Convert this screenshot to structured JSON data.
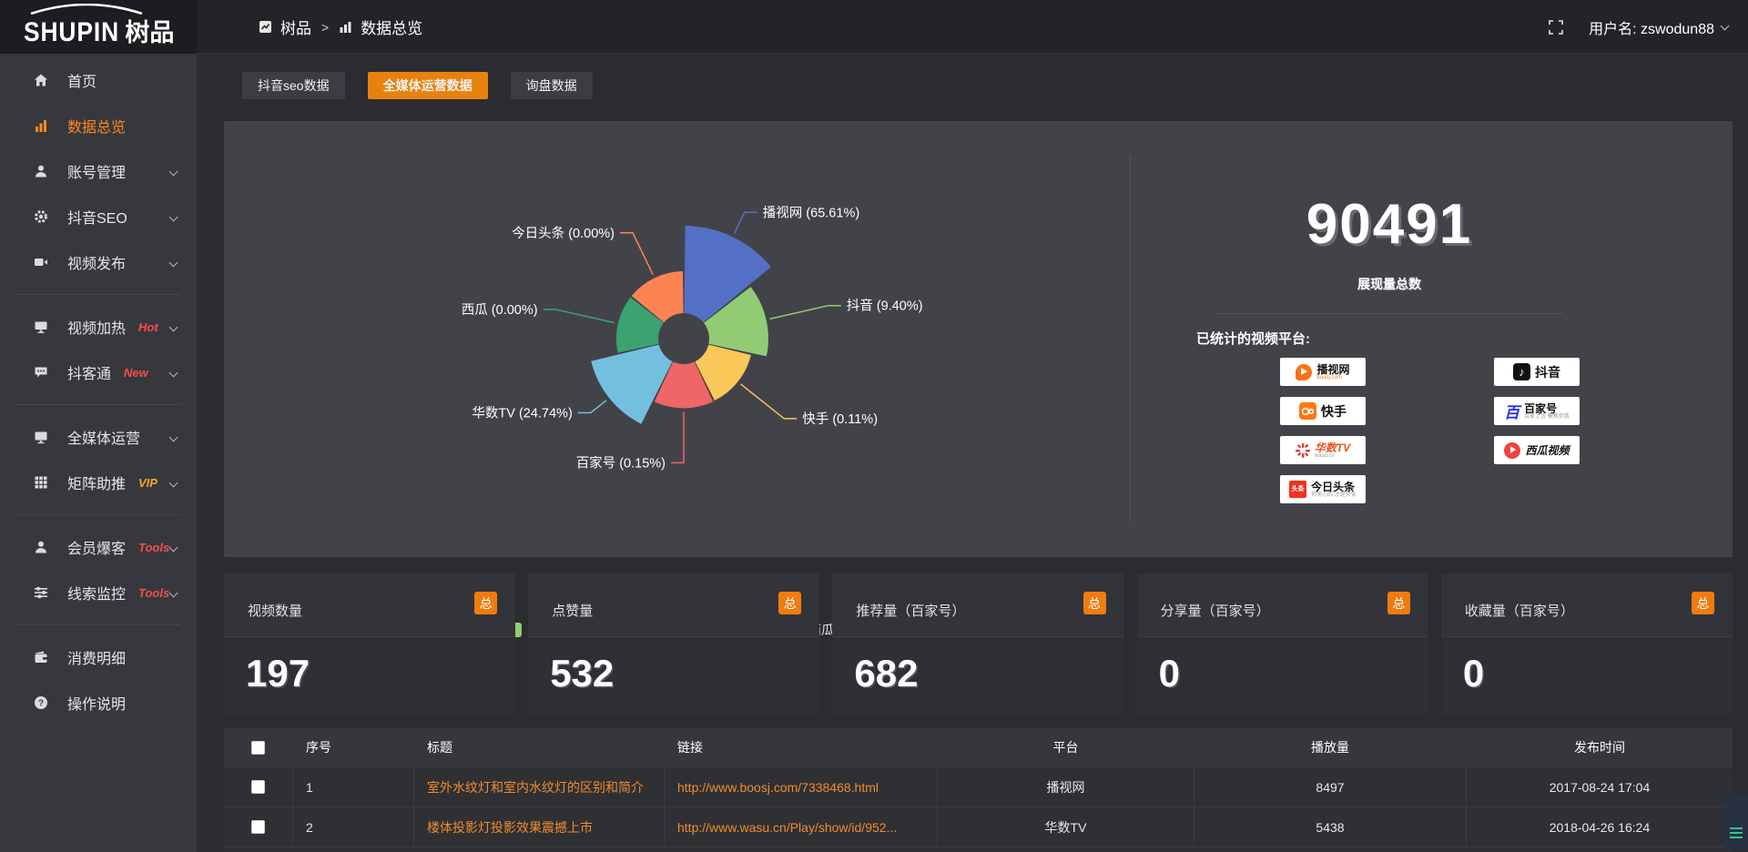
{
  "logo": {
    "en": "SHUPIN",
    "cn": "树品"
  },
  "topbar": {
    "breadcrumb_root": "树品",
    "breadcrumb_sep": ">",
    "breadcrumb_current": "数据总览",
    "username": "用户名: zswodun88"
  },
  "tabs": [
    {
      "label": "抖音seo数据",
      "active": false
    },
    {
      "label": "全媒体运营数据",
      "active": true
    },
    {
      "label": "询盘数据",
      "active": false
    }
  ],
  "sidebar": {
    "items": [
      {
        "label": "首页"
      },
      {
        "label": "数据总览",
        "active": true
      },
      {
        "label": "账号管理",
        "has_submenu": true
      },
      {
        "label": "抖音SEO",
        "has_submenu": true
      },
      {
        "label": "视频发布",
        "has_submenu": true
      },
      {
        "label": "视频加热",
        "tag": "Hot",
        "has_submenu": true
      },
      {
        "label": "抖客通",
        "tag": "New",
        "has_submenu": true
      },
      {
        "label": "全媒体运营",
        "has_submenu": true
      },
      {
        "label": "矩阵助推",
        "tag": "VIP",
        "has_submenu": true
      },
      {
        "label": "会员爆客",
        "tag": "Tools",
        "has_submenu": true
      },
      {
        "label": "线索监控",
        "tag": "Tools",
        "has_submenu": true
      },
      {
        "label": "消费明细"
      },
      {
        "label": "操作说明"
      }
    ]
  },
  "chart_data": {
    "type": "pie",
    "variant": "nightingale-rose",
    "title": "",
    "categories": [
      "播视网",
      "抖音",
      "快手",
      "百家号",
      "华数TV",
      "西瓜",
      "今日头条"
    ],
    "values": [
      65.61,
      9.4,
      0.11,
      0.15,
      24.74,
      0.0,
      0.0
    ],
    "unit": "%",
    "colors": [
      "#5470c6",
      "#91cc75",
      "#fac858",
      "#ee6666",
      "#73c0de",
      "#3ba272",
      "#fc8452"
    ],
    "legend_position": "bottom",
    "label_sides": [
      "right",
      "right",
      "right",
      "left",
      "left",
      "left",
      "left"
    ],
    "label_line_len": [
      30,
      70,
      65,
      60,
      26,
      70,
      55
    ]
  },
  "summary": {
    "total_value": "90491",
    "total_label": "展现量总数",
    "platforms_heading": "已统计的视频平台:",
    "platforms": [
      {
        "name": "播视网",
        "sub": "boosj.com"
      },
      {
        "name": "抖音",
        "sub": ""
      },
      {
        "name": "快手",
        "sub": ""
      },
      {
        "name": "百家号",
        "sub": "百家之言 聚焦你我"
      },
      {
        "name": "华数TV",
        "sub": "wasu.cn"
      },
      {
        "name": "西瓜视频",
        "sub": ""
      },
      {
        "name": "今日头条",
        "sub": "你关心的 才是头条"
      }
    ],
    "toutiao_logo_text": "头条"
  },
  "stats": {
    "badge_label": "总",
    "cards": [
      {
        "label": "视频数量",
        "value": "197"
      },
      {
        "label": "点赞量",
        "value": "532"
      },
      {
        "label": "推荐量（百家号）",
        "value": "682"
      },
      {
        "label": "分享量（百家号）",
        "value": "0"
      },
      {
        "label": "收藏量（百家号）",
        "value": "0"
      }
    ]
  },
  "table": {
    "headers": [
      "序号",
      "标题",
      "链接",
      "平台",
      "播放量",
      "发布时间"
    ],
    "rows": [
      {
        "seq": "1",
        "title": "室外水纹灯和室内水纹灯的区别和简介",
        "link": "http://www.boosj.com/7338468.html",
        "platform": "播视网",
        "plays": "8497",
        "time": "2017-08-24 17:04"
      },
      {
        "seq": "2",
        "title": "楼体投影灯投影效果震撼上市",
        "link": "http://www.wasu.cn/Play/show/id/952...",
        "platform": "华数TV",
        "plays": "5438",
        "time": "2018-04-26 16:24"
      }
    ]
  }
}
